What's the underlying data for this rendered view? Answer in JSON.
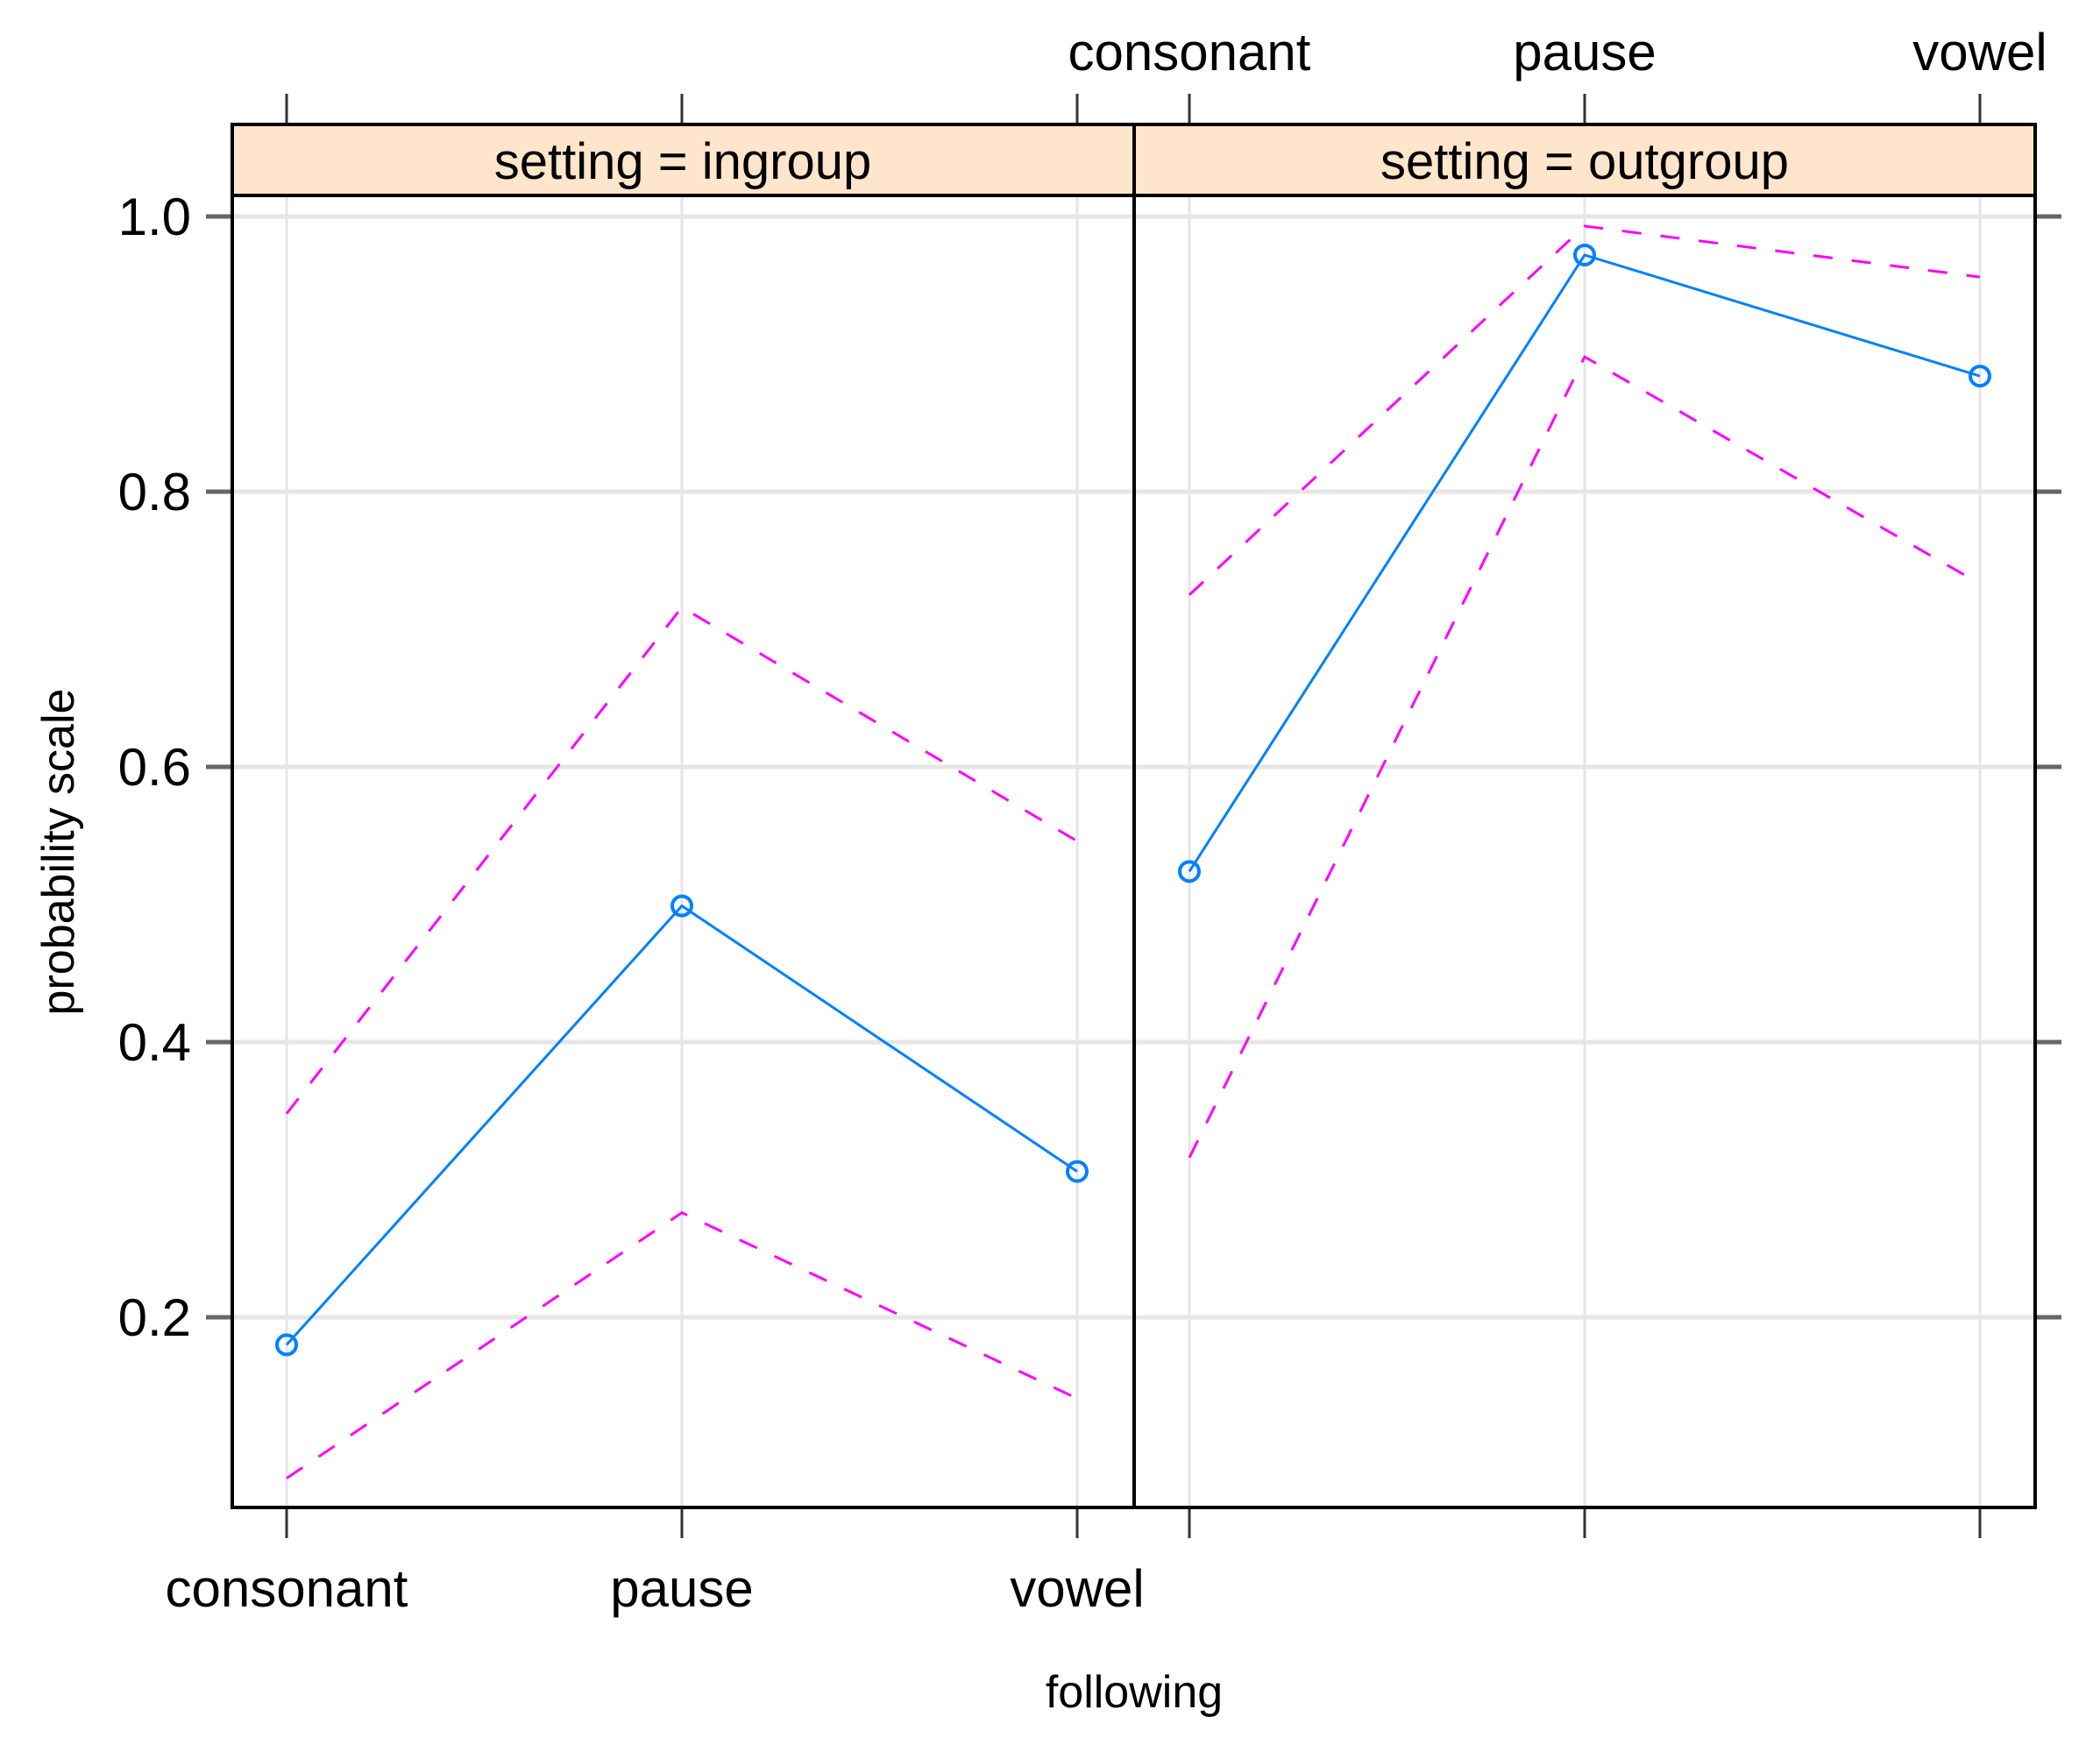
{
  "chart_data": {
    "type": "line",
    "title": "",
    "xlabel": "following",
    "ylabel": "probability scale",
    "ylim": [
      0.064,
      1.02
    ],
    "yticks": [
      0.2,
      0.4,
      0.6,
      0.8,
      1.0
    ],
    "ytick_labels": [
      "0.2",
      "0.4",
      "0.6",
      "0.8",
      "1.0"
    ],
    "categories": [
      "consonant",
      "pause",
      "vowel"
    ],
    "grid": true,
    "colors": {
      "fit": "#0080ff",
      "ci": "#ff00ff",
      "strip_bg": "#ffe5cc",
      "grid": "#e6e6e6"
    },
    "panels": [
      {
        "strip": "setting = ingroup",
        "series": [
          {
            "name": "fit",
            "style": "solid-with-circles",
            "values": [
              0.18,
              0.499,
              0.306
            ]
          },
          {
            "name": "upper",
            "style": "dashed",
            "values": [
              0.348,
              0.716,
              0.546
            ]
          },
          {
            "name": "lower",
            "style": "dashed",
            "values": [
              0.083,
              0.276,
              0.141
            ]
          }
        ]
      },
      {
        "strip": "setting = outgroup",
        "series": [
          {
            "name": "fit",
            "style": "solid-with-circles",
            "values": [
              0.524,
              0.972,
              0.884
            ]
          },
          {
            "name": "upper",
            "style": "dashed",
            "values": [
              0.725,
              0.993,
              0.956
            ]
          },
          {
            "name": "lower",
            "style": "dashed",
            "values": [
              0.316,
              0.898,
              0.733
            ]
          }
        ]
      }
    ]
  },
  "labels": {
    "ylabel": "probability scale",
    "xlabel": "following",
    "strip_left": "setting = ingroup",
    "strip_right": "setting = outgroup",
    "x_bottom": [
      "consonant",
      "pause",
      "vowel"
    ],
    "x_top": [
      "consonant",
      "pause",
      "vowel"
    ],
    "y": [
      "1.0",
      "0.8",
      "0.6",
      "0.4",
      "0.2"
    ]
  }
}
